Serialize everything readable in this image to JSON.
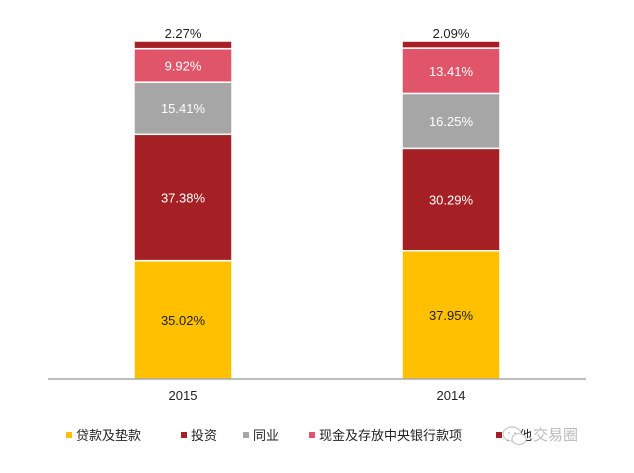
{
  "chart_data": {
    "type": "bar",
    "stacked": true,
    "normalized": true,
    "categories": [
      "2015",
      "2014"
    ],
    "series": [
      {
        "name": "贷款及垫款",
        "color": "#FFC000",
        "values": [
          35.02,
          37.95
        ],
        "labels": [
          "35.02%",
          "37.95%"
        ]
      },
      {
        "name": "投资",
        "color": "#A52024",
        "values": [
          37.38,
          30.29
        ],
        "labels": [
          "37.38%",
          "30.29%"
        ]
      },
      {
        "name": "同业",
        "color": "#A6A6A6",
        "values": [
          15.41,
          16.25
        ],
        "labels": [
          "15.41%",
          "16.25%"
        ]
      },
      {
        "name": "现金及存放中央银行款项",
        "color": "#E05569",
        "values": [
          9.92,
          13.41
        ],
        "labels": [
          "9.92%",
          "13.41%"
        ]
      },
      {
        "name": "其他",
        "color": "#A52024",
        "values": [
          2.27,
          2.09
        ],
        "labels": [
          "2.27%",
          "2.09%"
        ]
      }
    ],
    "ylim": [
      0,
      100
    ],
    "grid": false,
    "legend_position": "bottom"
  },
  "watermark": {
    "text": "交易圈",
    "icon": "wechat-icon"
  }
}
